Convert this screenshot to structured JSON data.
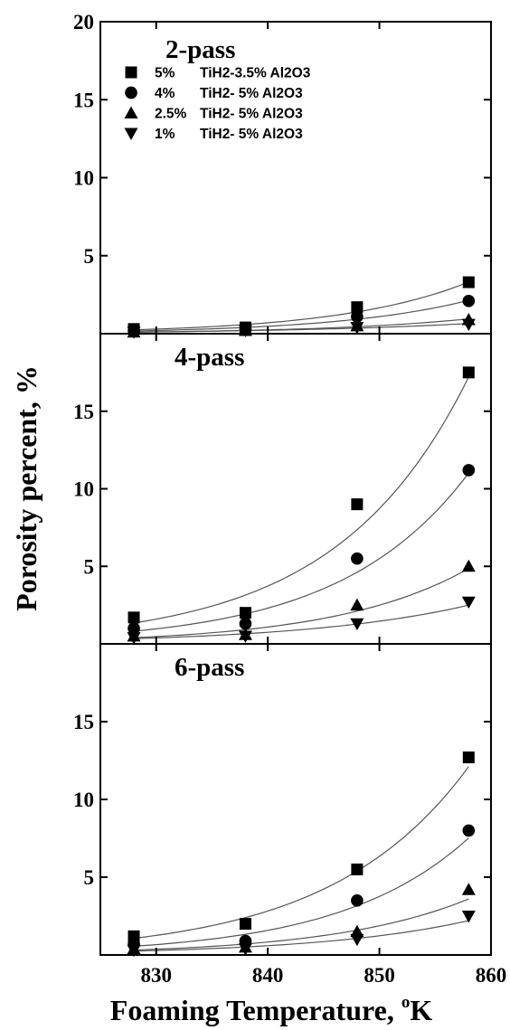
{
  "chart_data": {
    "type": "scatter",
    "layout": "three vertically stacked panels sharing x axis",
    "xlabel": "Foaming Temperature, ",
    "xlabel_unit_sup": "o",
    "xlabel_unit": "K",
    "ylabel": "Porosity percent, %",
    "xlim": [
      825,
      860
    ],
    "x_ticks": [
      830,
      840,
      850,
      860
    ],
    "y_ticks_top": [
      5,
      10,
      15,
      20
    ],
    "y_ticks_inner": [
      5,
      10,
      15
    ],
    "ylim": [
      0,
      20
    ],
    "legend": {
      "placement": "top-left of top panel",
      "entries": [
        {
          "marker": "square",
          "pct": "5%",
          "text": "TiH2-3.5% Al2O3"
        },
        {
          "marker": "circle",
          "pct": "4%",
          "text": "TiH2-  5% Al2O3"
        },
        {
          "marker": "triangle-up",
          "pct": "2.5%",
          "text": "TiH2-  5% Al2O3"
        },
        {
          "marker": "triangle-down",
          "pct": "1%",
          "text": "TiH2-  5% Al2O3"
        }
      ]
    },
    "fit_curves": "exponential trend lines through each series",
    "panels": [
      {
        "title": "2-pass",
        "x": [
          828,
          838,
          848,
          858
        ],
        "series": [
          {
            "name": "5% TiH2-3.5% Al2O3",
            "marker": "square",
            "values": [
              0.3,
              0.4,
              1.7,
              3.3
            ]
          },
          {
            "name": "4% TiH2- 5% Al2O3",
            "marker": "circle",
            "values": [
              0.2,
              0.3,
              1.1,
              2.1
            ]
          },
          {
            "name": "2.5% TiH2- 5% Al2O3",
            "marker": "triangle-up",
            "values": [
              0.1,
              0.2,
              0.5,
              0.9
            ]
          },
          {
            "name": "1% TiH2- 5% Al2O3",
            "marker": "triangle-down",
            "values": [
              0.1,
              0.2,
              0.4,
              0.6
            ]
          }
        ]
      },
      {
        "title": "4-pass",
        "x": [
          828,
          838,
          848,
          858
        ],
        "series": [
          {
            "name": "5% TiH2-3.5% Al2O3",
            "marker": "square",
            "values": [
              1.7,
              2.0,
              9.0,
              17.5
            ]
          },
          {
            "name": "4% TiH2- 5% Al2O3",
            "marker": "circle",
            "values": [
              1.0,
              1.3,
              5.5,
              11.2
            ]
          },
          {
            "name": "2.5% TiH2- 5% Al2O3",
            "marker": "triangle-up",
            "values": [
              0.5,
              0.6,
              2.5,
              5.0
            ]
          },
          {
            "name": "1% TiH2- 5% Al2O3",
            "marker": "triangle-down",
            "values": [
              0.4,
              0.5,
              1.3,
              2.7
            ]
          }
        ]
      },
      {
        "title": "6-pass",
        "x": [
          828,
          838,
          848,
          858
        ],
        "series": [
          {
            "name": "5% TiH2-3.5% Al2O3",
            "marker": "square",
            "values": [
              1.2,
              2.0,
              5.5,
              12.7
            ]
          },
          {
            "name": "4% TiH2- 5% Al2O3",
            "marker": "circle",
            "values": [
              0.7,
              0.9,
              3.5,
              8.0
            ]
          },
          {
            "name": "2.5% TiH2- 5% Al2O3",
            "marker": "triangle-up",
            "values": [
              0.4,
              0.5,
              1.5,
              4.2
            ]
          },
          {
            "name": "1% TiH2- 5% Al2O3",
            "marker": "triangle-down",
            "values": [
              0.3,
              0.4,
              1.0,
              2.5
            ]
          }
        ]
      }
    ]
  }
}
